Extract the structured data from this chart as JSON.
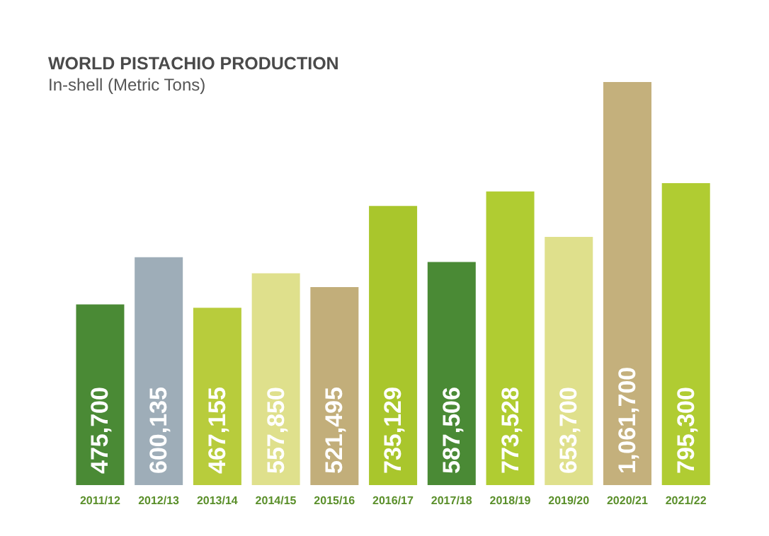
{
  "chart_data": {
    "type": "bar",
    "title": "WORLD PISTACHIO PRODUCTION",
    "subtitle": "In-shell (Metric Tons)",
    "categories": [
      "2011/12",
      "2012/13",
      "2013/14",
      "2014/15",
      "2015/16",
      "2016/17",
      "2017/18",
      "2018/19",
      "2019/20",
      "2020/21",
      "2021/22"
    ],
    "values": [
      475700,
      600135,
      467155,
      557850,
      521495,
      735129,
      587506,
      773528,
      653700,
      1061700,
      795300
    ],
    "colors": [
      "#4a8a35",
      "#9eadb8",
      "#b8cc3c",
      "#dfe08c",
      "#c2ae7a",
      "#a9c62c",
      "#4a8a35",
      "#b0cc32",
      "#dfe08c",
      "#c4b07c",
      "#b0cc32"
    ],
    "value_labels": [
      "475,700",
      "600,135",
      "467,155",
      "557,850",
      "521,495",
      "735,129",
      "587,506",
      "773,528",
      "653,700",
      "1,061,700",
      "795,300"
    ],
    "grid": false,
    "legend": false,
    "tick_labels": "x"
  }
}
